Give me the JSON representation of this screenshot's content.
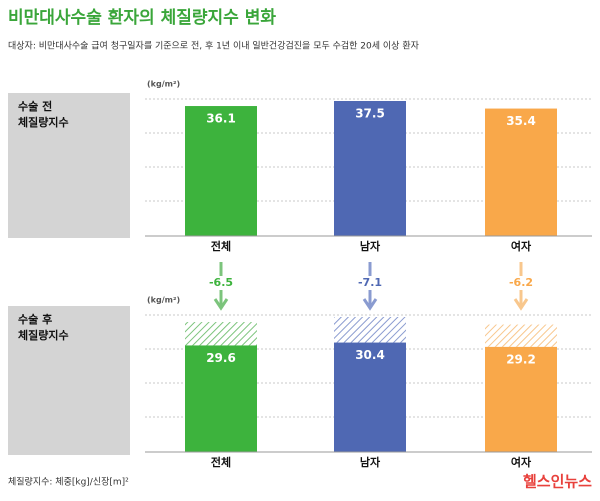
{
  "title": "비만대사수술 환자의 체질량지수 변화",
  "subtitle": "대상자: 비만대사수술 급여 청구일자를 기준으로 전, 후 1년 이내 일반건강검진을 모두 수검한 20세 이상 환자",
  "footnote": "체질량지수: 체중[kg]/신장[m]²",
  "source": "헬스인뉴스",
  "chart_data": [
    {
      "type": "bar",
      "panel_label": [
        "수술 전",
        "체질량지수"
      ],
      "y_label": "(kg/m²)",
      "categories": [
        "전체",
        "남자",
        "여자"
      ],
      "values": [
        36.1,
        37.5,
        35.4
      ],
      "colors": [
        "#3db33d",
        "#4f68b3",
        "#f9a84a"
      ],
      "ylim": [
        0,
        40
      ]
    },
    {
      "type": "bar",
      "panel_label": [
        "수술 후",
        "체질량지수"
      ],
      "y_label": "(kg/m²)",
      "categories": [
        "전체",
        "남자",
        "여자"
      ],
      "values": [
        29.6,
        30.4,
        29.2
      ],
      "changes": [
        -6.5,
        -7.1,
        -6.2
      ],
      "colors": [
        "#3db33d",
        "#4f68b3",
        "#f9a84a"
      ],
      "change_colors": [
        "#7cc47c",
        "#8a9bd0",
        "#f8c78d"
      ],
      "ylim": [
        0,
        40
      ]
    }
  ]
}
